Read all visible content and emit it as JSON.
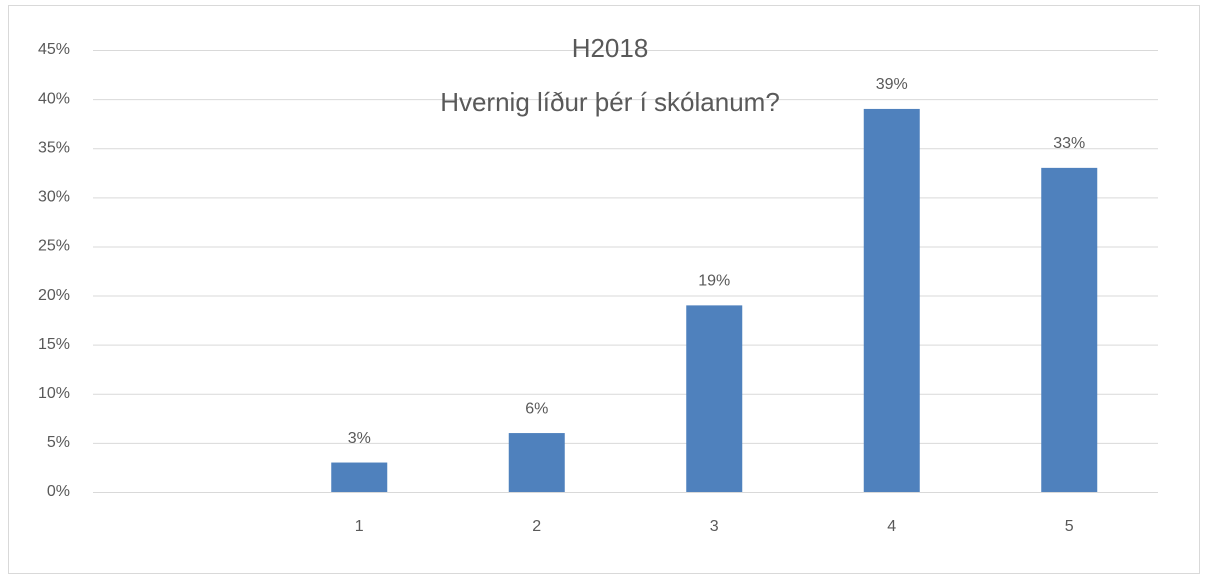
{
  "chart_data": {
    "type": "bar",
    "title": "H2018",
    "subtitle": "Hvernig líður þér í skólanum?",
    "categories": [
      null,
      "1",
      "2",
      "3",
      "4",
      "5"
    ],
    "values": [
      null,
      3,
      6,
      19,
      39,
      33
    ],
    "value_labels": [
      null,
      "3%",
      "6%",
      "19%",
      "39%",
      "33%"
    ],
    "color": "#4f81bd",
    "ylim": [
      0,
      45
    ],
    "yticks": [
      {
        "value": 0,
        "label": "0%"
      },
      {
        "value": 5,
        "label": "5%"
      },
      {
        "value": 10,
        "label": "10%"
      },
      {
        "value": 15,
        "label": "15%"
      },
      {
        "value": 20,
        "label": "20%"
      },
      {
        "value": 25,
        "label": "25%"
      },
      {
        "value": 30,
        "label": "30%"
      },
      {
        "value": 35,
        "label": "35%"
      },
      {
        "value": 40,
        "label": "40%"
      },
      {
        "value": 45,
        "label": "45%"
      }
    ],
    "grid": true
  }
}
